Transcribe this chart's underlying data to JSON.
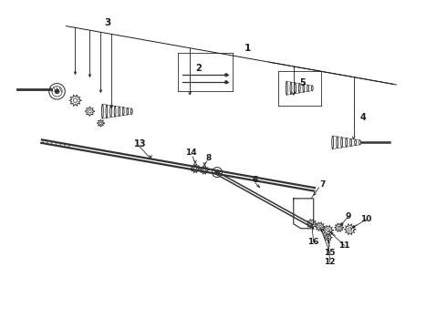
{
  "bg_color": "#ffffff",
  "line_color": "#1a1a1a",
  "part_color": "#333333",
  "fig_width": 4.9,
  "fig_height": 3.6,
  "dpi": 100,
  "upper_bracket_slope": -0.18,
  "shaft_slope": -0.18
}
